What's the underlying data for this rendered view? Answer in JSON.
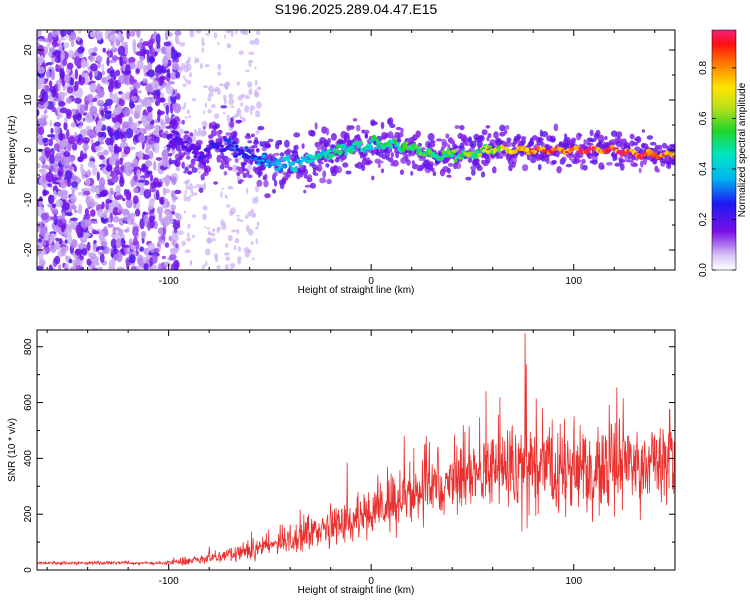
{
  "title": "S196.2025.289.04.47.E15",
  "chart_data": [
    {
      "type": "heatmap",
      "xlabel": "Height of straight line (km)",
      "ylabel": "Frequency (Hz)",
      "xlim": [
        -165,
        150
      ],
      "ylim": [
        -24,
        24
      ],
      "xticks": [
        -100,
        0,
        100
      ],
      "yticks": [
        -20,
        -10,
        0,
        10,
        20
      ],
      "colorbar": {
        "label": "Normalized spectral amplitude",
        "range": [
          0,
          0.95
        ],
        "ticks": [
          0.0,
          0.2,
          0.4,
          0.6,
          0.8
        ]
      },
      "ridge": {
        "description_points_x_km": [
          -95,
          -85,
          -75,
          -60,
          -45,
          -30,
          -15,
          0,
          15,
          30,
          45,
          60,
          75,
          90,
          105,
          120,
          135,
          148
        ],
        "frequency_hz": [
          2,
          -1,
          1,
          -1,
          -3,
          -2,
          0,
          1,
          1,
          -1,
          -1,
          0,
          0,
          0,
          0,
          0,
          -1,
          -1
        ],
        "amplitude": [
          0.2,
          0.2,
          0.25,
          0.3,
          0.4,
          0.45,
          0.5,
          0.5,
          0.55,
          0.55,
          0.6,
          0.65,
          0.85,
          0.9,
          0.95,
          0.95,
          0.9,
          0.85
        ]
      },
      "noise_region_x_km": [
        -165,
        -95
      ]
    },
    {
      "type": "line",
      "xlabel": "Height of straight line (km)",
      "ylabel": "SNR (10 * v/v)",
      "xlim": [
        -165,
        150
      ],
      "ylim": [
        0,
        860
      ],
      "xticks": [
        -100,
        0,
        100
      ],
      "yticks": [
        0,
        200,
        400,
        600,
        800
      ],
      "series": [
        {
          "name": "SNR",
          "color": "#e8302e",
          "trend_x_km": [
            -165,
            -120,
            -100,
            -80,
            -60,
            -40,
            -20,
            0,
            20,
            40,
            60,
            80,
            100,
            120,
            150
          ],
          "trend_snr": [
            25,
            25,
            25,
            40,
            70,
            110,
            150,
            200,
            270,
            330,
            360,
            370,
            360,
            370,
            380
          ],
          "peak": {
            "x_km": 76,
            "snr": 850
          }
        }
      ]
    }
  ]
}
